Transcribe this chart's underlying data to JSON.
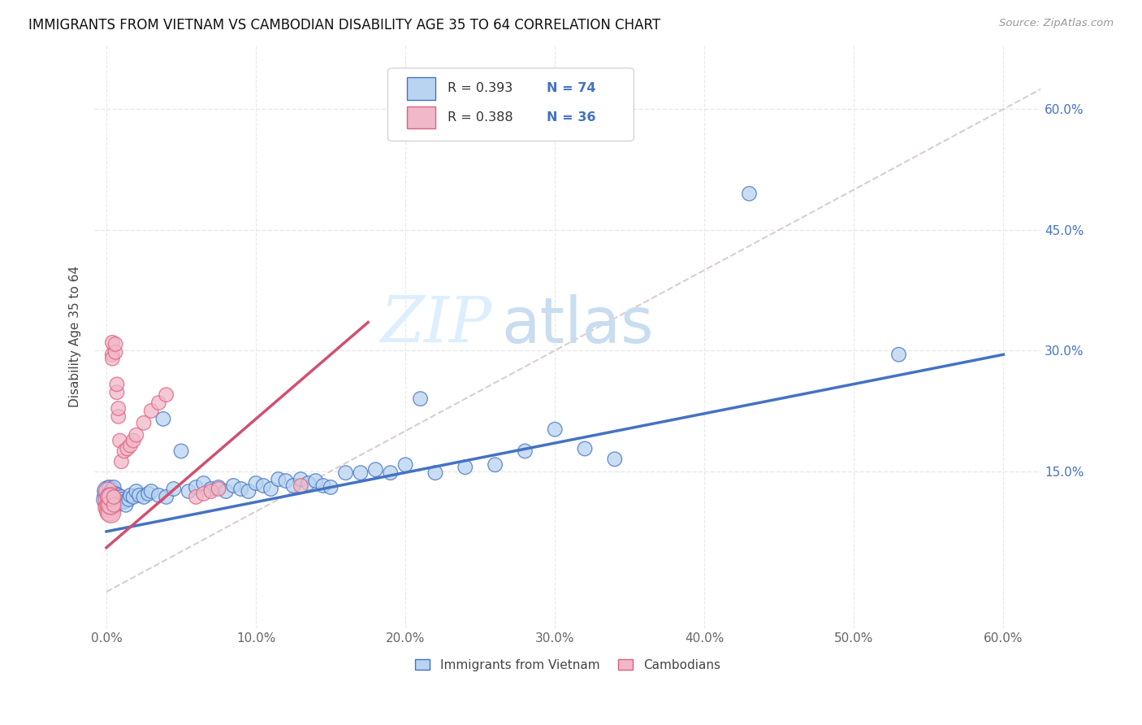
{
  "title": "IMMIGRANTS FROM VIETNAM VS CAMBODIAN DISABILITY AGE 35 TO 64 CORRELATION CHART",
  "source": "Source: ZipAtlas.com",
  "ylabel": "Disability Age 35 to 64",
  "xlim": [
    -0.008,
    0.625
  ],
  "ylim": [
    -0.045,
    0.68
  ],
  "xticks": [
    0.0,
    0.1,
    0.2,
    0.3,
    0.4,
    0.5,
    0.6
  ],
  "xtick_labels": [
    "0.0%",
    "10.0%",
    "20.0%",
    "30.0%",
    "40.0%",
    "50.0%",
    "60.0%"
  ],
  "yticks": [
    0.15,
    0.3,
    0.45,
    0.6
  ],
  "ytick_labels": [
    "15.0%",
    "30.0%",
    "45.0%",
    "60.0%"
  ],
  "legend_r1": "0.393",
  "legend_n1": "74",
  "legend_r2": "0.388",
  "legend_n2": "36",
  "color_vietnam_fill": "#b8d4f0",
  "color_cambodian_fill": "#f0b8c8",
  "color_vietnam_edge": "#4472c4",
  "color_cambodian_edge": "#e06080",
  "color_trend_blue": "#4472c4",
  "color_trend_pink": "#d05070",
  "color_diagonal": "#d8c8c8",
  "color_grid": "#e8e8e8",
  "color_rval": "#4472c4",
  "color_nval": "#4472c4",
  "watermark_zip": "ZIP",
  "watermark_atlas": "atlas",
  "watermark_color_zip": "#ddeeff",
  "watermark_color_atlas": "#c8ddf0",
  "background_color": "#ffffff",
  "vietnam_trend_x": [
    0.0,
    0.6
  ],
  "vietnam_trend_y": [
    0.075,
    0.295
  ],
  "cambodian_trend_x": [
    0.0,
    0.175
  ],
  "cambodian_trend_y": [
    0.055,
    0.335
  ],
  "vietnam_x": [
    0.001,
    0.001,
    0.002,
    0.002,
    0.002,
    0.003,
    0.003,
    0.003,
    0.004,
    0.004,
    0.004,
    0.005,
    0.005,
    0.005,
    0.006,
    0.006,
    0.007,
    0.007,
    0.008,
    0.008,
    0.009,
    0.01,
    0.01,
    0.011,
    0.012,
    0.013,
    0.015,
    0.016,
    0.018,
    0.02,
    0.022,
    0.025,
    0.028,
    0.03,
    0.035,
    0.038,
    0.04,
    0.045,
    0.05,
    0.055,
    0.06,
    0.065,
    0.07,
    0.075,
    0.08,
    0.085,
    0.09,
    0.095,
    0.1,
    0.105,
    0.11,
    0.115,
    0.12,
    0.125,
    0.13,
    0.135,
    0.14,
    0.145,
    0.15,
    0.16,
    0.17,
    0.18,
    0.19,
    0.2,
    0.21,
    0.22,
    0.24,
    0.26,
    0.28,
    0.3,
    0.32,
    0.34,
    0.43,
    0.53
  ],
  "vietnam_y": [
    0.115,
    0.125,
    0.11,
    0.12,
    0.13,
    0.105,
    0.115,
    0.125,
    0.108,
    0.118,
    0.128,
    0.11,
    0.12,
    0.13,
    0.112,
    0.122,
    0.108,
    0.118,
    0.11,
    0.12,
    0.115,
    0.112,
    0.118,
    0.115,
    0.112,
    0.108,
    0.115,
    0.12,
    0.118,
    0.125,
    0.12,
    0.118,
    0.122,
    0.125,
    0.12,
    0.215,
    0.118,
    0.128,
    0.175,
    0.125,
    0.13,
    0.135,
    0.128,
    0.13,
    0.125,
    0.132,
    0.128,
    0.125,
    0.135,
    0.132,
    0.128,
    0.14,
    0.138,
    0.132,
    0.14,
    0.135,
    0.138,
    0.132,
    0.13,
    0.148,
    0.148,
    0.152,
    0.148,
    0.158,
    0.24,
    0.148,
    0.155,
    0.158,
    0.175,
    0.202,
    0.178,
    0.165,
    0.495,
    0.295
  ],
  "cambodian_x": [
    0.001,
    0.001,
    0.001,
    0.002,
    0.002,
    0.002,
    0.003,
    0.003,
    0.003,
    0.004,
    0.004,
    0.004,
    0.005,
    0.005,
    0.006,
    0.006,
    0.007,
    0.007,
    0.008,
    0.008,
    0.009,
    0.01,
    0.012,
    0.014,
    0.016,
    0.018,
    0.02,
    0.025,
    0.03,
    0.035,
    0.04,
    0.06,
    0.065,
    0.07,
    0.075,
    0.13
  ],
  "cambodian_y": [
    0.105,
    0.115,
    0.125,
    0.1,
    0.108,
    0.118,
    0.098,
    0.108,
    0.118,
    0.295,
    0.31,
    0.29,
    0.108,
    0.118,
    0.298,
    0.308,
    0.248,
    0.258,
    0.218,
    0.228,
    0.188,
    0.162,
    0.175,
    0.178,
    0.182,
    0.188,
    0.195,
    0.21,
    0.225,
    0.235,
    0.245,
    0.118,
    0.122,
    0.125,
    0.128,
    0.132
  ],
  "vietnam_sizes": [
    400,
    350,
    200,
    180,
    160,
    200,
    180,
    160,
    200,
    180,
    160,
    200,
    180,
    160,
    160,
    160,
    160,
    160,
    160,
    160,
    160,
    160,
    160,
    160,
    160,
    160,
    160,
    160,
    160,
    160,
    160,
    160,
    160,
    160,
    160,
    160,
    160,
    160,
    160,
    160,
    160,
    160,
    160,
    160,
    160,
    160,
    160,
    160,
    160,
    160,
    160,
    160,
    160,
    160,
    160,
    160,
    160,
    160,
    160,
    160,
    160,
    160,
    160,
    160,
    160,
    160,
    160,
    160,
    160,
    160,
    160,
    160,
    160,
    160
  ],
  "cambodian_sizes": [
    300,
    280,
    260,
    300,
    280,
    260,
    300,
    280,
    260,
    160,
    160,
    160,
    160,
    160,
    160,
    160,
    160,
    160,
    160,
    160,
    160,
    160,
    160,
    160,
    160,
    160,
    160,
    160,
    160,
    160,
    160,
    160,
    160,
    160,
    160,
    160
  ]
}
